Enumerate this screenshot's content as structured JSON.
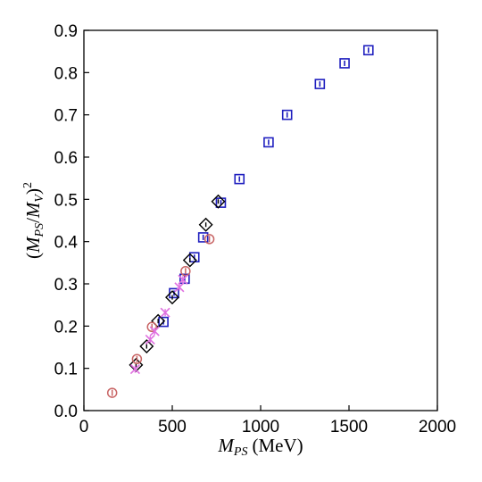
{
  "chart_data": {
    "type": "scatter",
    "title": "",
    "xlabel": {
      "main": "M",
      "sub": "PS",
      "unit": "(MeV)"
    },
    "ylabel": {
      "open": "(",
      "m1": "M",
      "s1": "PS",
      "slash": "/",
      "m2": "M",
      "s2": "V",
      "close": ")",
      "power": "2"
    },
    "xlim": [
      0,
      2000
    ],
    "ylim": [
      0,
      0.9
    ],
    "xticks": [
      "0",
      "500",
      "1000",
      "1500",
      "2000"
    ],
    "yticks": [
      "0.0",
      "0.1",
      "0.2",
      "0.3",
      "0.4",
      "0.5",
      "0.6",
      "0.7",
      "0.8",
      "0.9"
    ],
    "grid": false,
    "series": [
      {
        "marker": "square",
        "color": "#1f1fbf",
        "points": [
          [
            450,
            0.21
          ],
          [
            510,
            0.278
          ],
          [
            570,
            0.312
          ],
          [
            625,
            0.363
          ],
          [
            675,
            0.41
          ],
          [
            775,
            0.492
          ],
          [
            880,
            0.548
          ],
          [
            1045,
            0.635
          ],
          [
            1150,
            0.7
          ],
          [
            1335,
            0.773
          ],
          [
            1475,
            0.822
          ],
          [
            1610,
            0.853
          ]
        ]
      },
      {
        "marker": "diamond",
        "color": "#000000",
        "points": [
          [
            295,
            0.108
          ],
          [
            355,
            0.152
          ],
          [
            420,
            0.212
          ],
          [
            500,
            0.268
          ],
          [
            600,
            0.356
          ],
          [
            690,
            0.44
          ],
          [
            760,
            0.495
          ]
        ]
      },
      {
        "marker": "circle",
        "color": "#c86464",
        "points": [
          [
            160,
            0.042
          ],
          [
            300,
            0.122
          ],
          [
            385,
            0.198
          ],
          [
            575,
            0.33
          ],
          [
            710,
            0.406
          ]
        ]
      },
      {
        "marker": "cross",
        "color": "#e070e0",
        "points": [
          [
            290,
            0.098
          ],
          [
            375,
            0.168
          ],
          [
            400,
            0.188
          ],
          [
            460,
            0.232
          ],
          [
            540,
            0.292
          ],
          [
            560,
            0.31
          ]
        ]
      }
    ]
  }
}
